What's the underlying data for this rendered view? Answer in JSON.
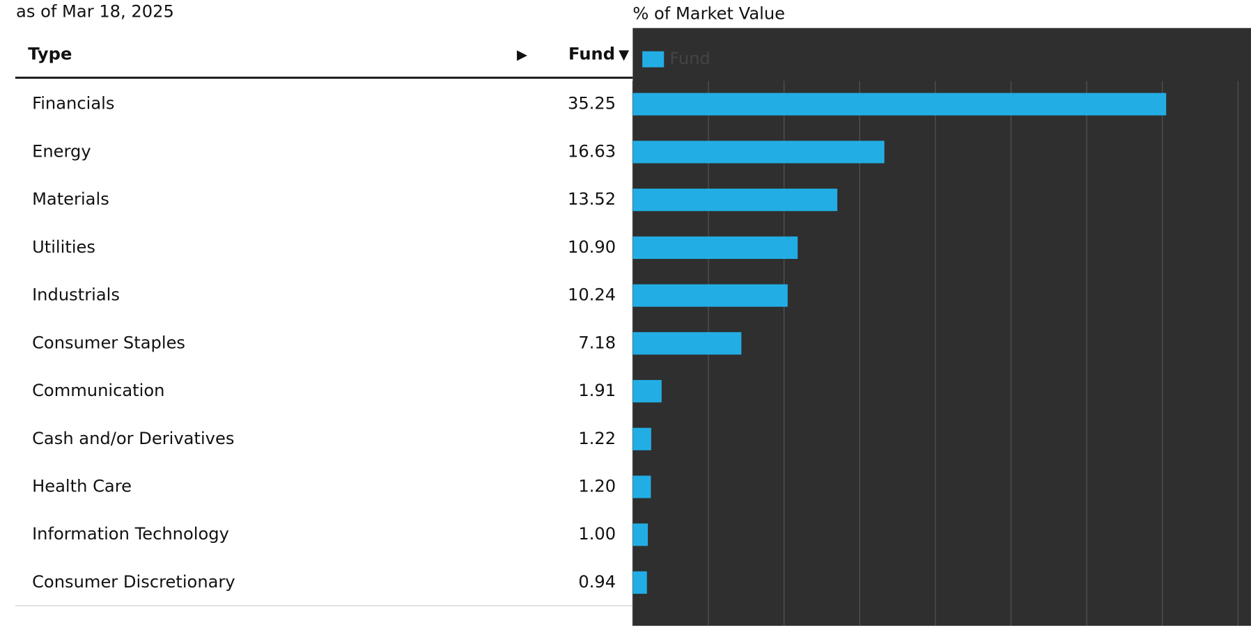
{
  "chart_data": {
    "type": "bar",
    "orientation": "horizontal",
    "subtitle": "as of Mar 18, 2025",
    "title": "% of Market Value",
    "column_headers": [
      "Type",
      "Fund"
    ],
    "categories": [
      "Financials",
      "Energy",
      "Materials",
      "Utilities",
      "Industrials",
      "Consumer Staples",
      "Communication",
      "Cash and/or Derivatives",
      "Health Care",
      "Information Technology",
      "Consumer Discretionary"
    ],
    "series": [
      {
        "name": "Fund",
        "color": "#22aee4",
        "values": [
          35.25,
          16.63,
          13.52,
          10.9,
          10.24,
          7.18,
          1.91,
          1.22,
          1.2,
          1.0,
          0.94
        ],
        "value_labels": [
          "35.25",
          "16.63",
          "13.52",
          "10.90",
          "10.24",
          "7.18",
          "1.91",
          "1.22",
          "1.20",
          "1.00",
          "0.94"
        ]
      }
    ],
    "xlim": [
      0,
      40.75
    ],
    "xticks": [
      0,
      5,
      10,
      15,
      20,
      25,
      30,
      35,
      40
    ],
    "grid": true
  }
}
